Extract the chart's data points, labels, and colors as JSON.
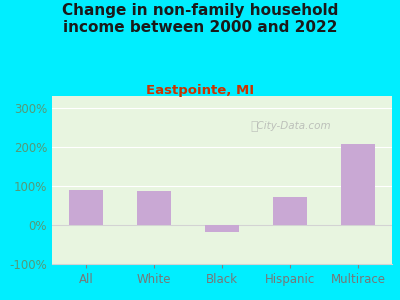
{
  "title": "Change in non-family household\nincome between 2000 and 2022",
  "subtitle": "Eastpointe, MI",
  "categories": [
    "All",
    "White",
    "Black",
    "Hispanic",
    "Multirace"
  ],
  "values": [
    90,
    88,
    -18,
    72,
    207
  ],
  "bar_color": "#c9a8d4",
  "background_outer": "#00eeff",
  "background_inner": "#e8f5e0",
  "title_color": "#1a1a1a",
  "subtitle_color": "#cc3300",
  "axis_label_color": "#559977",
  "tick_label_color": "#777777",
  "ylim": [
    -100,
    330
  ],
  "yticks": [
    -100,
    0,
    100,
    200,
    300
  ],
  "watermark": "  City-Data.com",
  "title_fontsize": 11,
  "subtitle_fontsize": 9.5,
  "tick_fontsize": 8.5,
  "xtick_fontsize": 8.5
}
